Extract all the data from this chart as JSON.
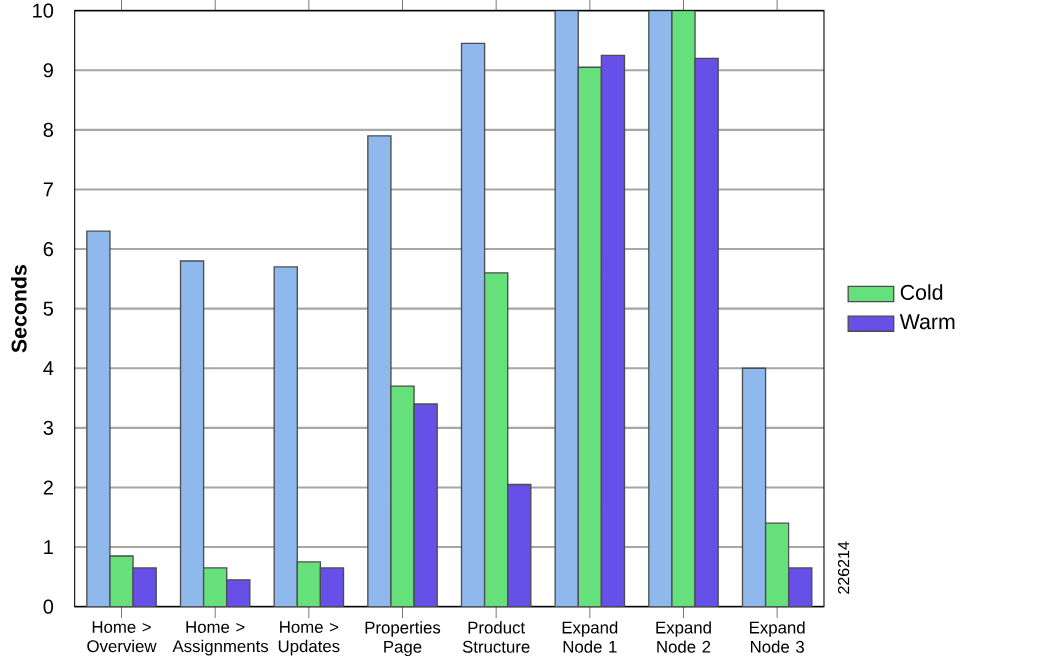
{
  "chart_data": {
    "type": "bar",
    "ylabel": "Seconds",
    "categories": [
      "Home > Overview",
      "Home > Assignments",
      "Home > Updates",
      "Properties Page",
      "Product Structure",
      "Expand Node 1",
      "Expand Node 2",
      "Expand Node 3"
    ],
    "series": [
      {
        "color": "#8fb8ec",
        "values": [
          6.3,
          5.8,
          5.7,
          7.9,
          9.45,
          10,
          10,
          4.0
        ]
      },
      {
        "name": "Cold",
        "color": "#66e07a",
        "values": [
          0.85,
          0.65,
          0.75,
          3.7,
          5.6,
          9.05,
          10,
          1.4
        ]
      },
      {
        "name": "Warm",
        "color": "#6650e8",
        "values": [
          0.65,
          0.45,
          0.65,
          3.4,
          2.05,
          9.25,
          9.2,
          0.65
        ]
      }
    ],
    "ylim": [
      0,
      10
    ],
    "yticks": [
      0,
      1,
      2,
      3,
      4,
      5,
      6,
      7,
      8,
      9,
      10
    ],
    "grid": "y",
    "legend": "right",
    "annotations": [
      "226214"
    ]
  }
}
